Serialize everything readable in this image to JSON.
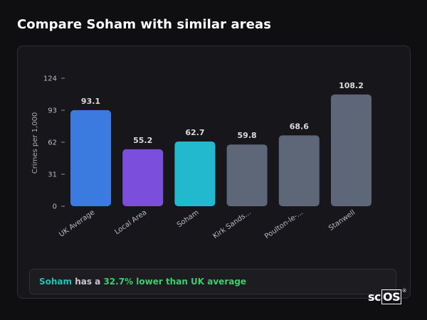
{
  "page": {
    "title": "Compare Soham with similar areas"
  },
  "summary": {
    "place": "Soham",
    "middle": " has a ",
    "difference": "32.7% lower than UK average"
  },
  "brand": {
    "left": "sc",
    "boxed": "OS",
    "reg": "®"
  },
  "colors": {
    "background": "#0f0f11",
    "card": "#17171b",
    "accent_teal": "#22c1b8",
    "accent_green": "#3ccf6e"
  },
  "chart_data": {
    "type": "bar",
    "title": "",
    "xlabel": "",
    "ylabel": "Crimes per 1,000",
    "ylim": [
      0,
      124
    ],
    "yticks": [
      0,
      31,
      62,
      93,
      124
    ],
    "categories": [
      "UK Average",
      "Local Area",
      "Soham",
      "Kirk Sands...",
      "Poulton-le-...",
      "Stanwell"
    ],
    "values": [
      93.1,
      55.2,
      62.7,
      59.8,
      68.6,
      108.2
    ],
    "value_labels": [
      "93.1",
      "55.2",
      "62.7",
      "59.8",
      "68.6",
      "108.2"
    ],
    "bar_colors": [
      "#3b7be0",
      "#7b4fdb",
      "#22b9cf",
      "#5d6777",
      "#5d6777",
      "#5d6777"
    ],
    "grid": false,
    "legend": "none"
  }
}
